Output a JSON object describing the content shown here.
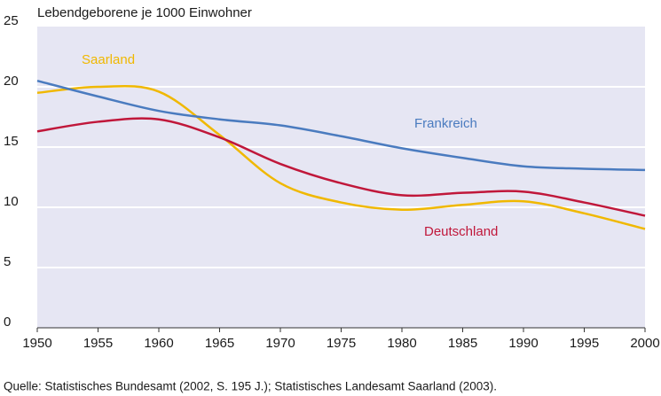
{
  "chart_data": {
    "type": "line",
    "y_label": "Lebendgeborene je 1000 Einwohner",
    "source": "Quelle: Statistisches Bundesamt (2002, S. 195 J.); Statistisches Landesamt Saarland (2003).",
    "x": [
      1950,
      1955,
      1960,
      1965,
      1970,
      1975,
      1980,
      1985,
      1990,
      1995,
      2000
    ],
    "series": [
      {
        "name": "Saarland",
        "color": "#f0b800",
        "values": [
          19.5,
          20.0,
          19.6,
          16.0,
          12.0,
          10.4,
          9.8,
          10.2,
          10.5,
          9.5,
          8.2
        ]
      },
      {
        "name": "Frankreich",
        "color": "#4a7bbf",
        "values": [
          20.5,
          19.2,
          18.0,
          17.3,
          16.8,
          15.9,
          14.9,
          14.1,
          13.4,
          13.2,
          13.1
        ]
      },
      {
        "name": "Deutschland",
        "color": "#c0173a",
        "values": [
          16.3,
          17.1,
          17.3,
          15.8,
          13.6,
          12.0,
          11.0,
          11.2,
          11.3,
          10.4,
          9.3
        ]
      }
    ],
    "xlim": [
      1950,
      2000
    ],
    "xticks": [
      1950,
      1955,
      1960,
      1965,
      1970,
      1975,
      1980,
      1985,
      1990,
      1995,
      2000
    ],
    "ylim": [
      0,
      25
    ],
    "yticks": [
      0,
      5,
      10,
      15,
      20,
      25
    ],
    "grid": true
  }
}
